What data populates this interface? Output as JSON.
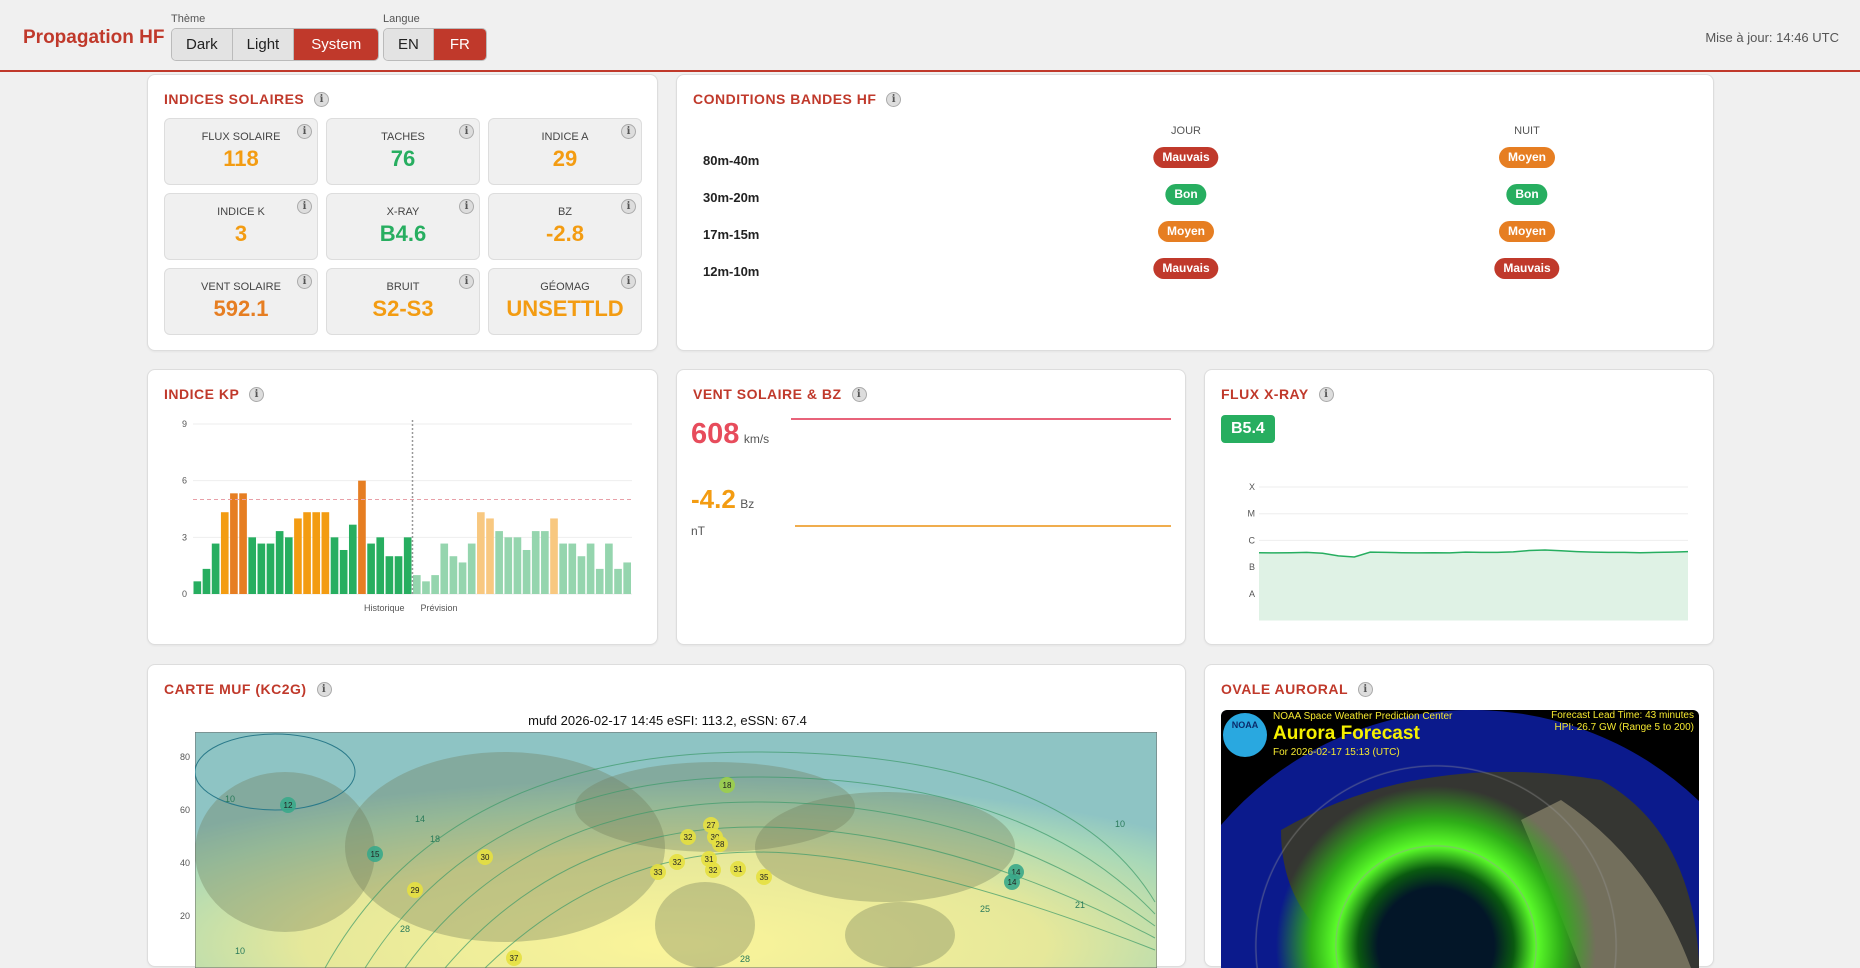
{
  "header": {
    "title": "Propagation HF",
    "theme_label": "Thème",
    "theme_options": [
      "Dark",
      "Light",
      "System"
    ],
    "theme_selected": "System",
    "lang_label": "Langue",
    "lang_options": [
      "EN",
      "FR"
    ],
    "lang_selected": "FR",
    "updated": "Mise à jour: 14:46 UTC"
  },
  "colors": {
    "accent": "#c0392b",
    "good": "#27ae60",
    "fair": "#e67e22",
    "poor": "#c0392b",
    "warn": "#f39c12"
  },
  "solar": {
    "title": "INDICES SOLAIRES",
    "tiles": [
      {
        "label": "FLUX SOLAIRE",
        "value": "118",
        "color": "#f39c12"
      },
      {
        "label": "TACHES",
        "value": "76",
        "color": "#27ae60"
      },
      {
        "label": "INDICE A",
        "value": "29",
        "color": "#f39c12"
      },
      {
        "label": "INDICE K",
        "value": "3",
        "color": "#f39c12"
      },
      {
        "label": "X-RAY",
        "value": "B4.6",
        "color": "#27ae60"
      },
      {
        "label": "BZ",
        "value": "-2.8",
        "color": "#f39c12"
      },
      {
        "label": "VENT SOLAIRE",
        "value": "592.1",
        "color": "#e67e22"
      },
      {
        "label": "BRUIT",
        "value": "S2-S3",
        "color": "#f39c12"
      },
      {
        "label": "GÉOMAG",
        "value": "UNSETTLD",
        "color": "#f39c12"
      }
    ]
  },
  "bands": {
    "title": "CONDITIONS BANDES HF",
    "col_day": "JOUR",
    "col_night": "NUIT",
    "rows": [
      {
        "band": "80m-40m",
        "day": "Mauvais",
        "day_color": "#c0392b",
        "night": "Moyen",
        "night_color": "#e67e22"
      },
      {
        "band": "30m-20m",
        "day": "Bon",
        "day_color": "#27ae60",
        "night": "Bon",
        "night_color": "#27ae60"
      },
      {
        "band": "17m-15m",
        "day": "Moyen",
        "day_color": "#e67e22",
        "night": "Moyen",
        "night_color": "#e67e22"
      },
      {
        "band": "12m-10m",
        "day": "Mauvais",
        "day_color": "#c0392b",
        "night": "Mauvais",
        "night_color": "#c0392b"
      }
    ]
  },
  "chart_data": [
    {
      "type": "bar",
      "title": "INDICE KP",
      "yticks": [
        "0",
        "3",
        "6",
        "9"
      ],
      "ylim": [
        0,
        9
      ],
      "threshold": 5,
      "grid": true,
      "xlabels": [
        "Historique",
        "Prévision"
      ],
      "series": [
        {
          "name": "Historique",
          "values": [
            0.67,
            1.33,
            2.67,
            4.33,
            5.33,
            5.33,
            3,
            2.67,
            2.67,
            3.33,
            3,
            4,
            4.33,
            4.33,
            4.33,
            3,
            2.33,
            3.67,
            6,
            2.67,
            3,
            2,
            2,
            3
          ]
        },
        {
          "name": "Prévision",
          "values": [
            1,
            0.67,
            1,
            2.67,
            2,
            1.67,
            2.67,
            4.33,
            4,
            3.33,
            3,
            3,
            2.33,
            3.33,
            3.33,
            4,
            2.67,
            2.67,
            2,
            2.67,
            1.33,
            2.67,
            1.33,
            1.67
          ]
        }
      ]
    },
    {
      "type": "line",
      "title": "FLUX X-RAY",
      "yticks": [
        "X",
        "M",
        "C",
        "B",
        "A"
      ],
      "grid": true,
      "current": "B5.4",
      "values": [
        5.4,
        5.3,
        5.4,
        5.5,
        5.2,
        4.2,
        3.8,
        5.6,
        5.5,
        5.4,
        5.3,
        5.4,
        5.3,
        5.6,
        5.5,
        5.5,
        5.7,
        6.2,
        6.4,
        6.1,
        5.8,
        5.6,
        5.5,
        5.5,
        5.4,
        5.5,
        5.6,
        5.8
      ]
    }
  ],
  "wind": {
    "title": "VENT SOLAIRE & BZ",
    "speed": "608",
    "speed_unit": "km/s",
    "bz": "-4.2",
    "bz_unit": "Bz nT"
  },
  "muf": {
    "title": "CARTE MUF (KC2G)",
    "map_title": "mufd 2026-02-17 14:45 eSFI: 113.2, eSSN: 67.4",
    "lat_ticks": [
      "80",
      "60",
      "40",
      "20"
    ],
    "stations": [
      "12",
      "18",
      "15",
      "30",
      "29",
      "27",
      "32",
      "30",
      "28",
      "32",
      "31",
      "33",
      "32",
      "31",
      "35",
      "14",
      "14",
      "37"
    ],
    "contours": [
      "10",
      "14",
      "18",
      "28",
      "25",
      "21",
      "10",
      "10",
      "28"
    ]
  },
  "aurora": {
    "title": "OVALE AURORAL",
    "org": "NOAA Space Weather Prediction Center",
    "heading": "Aurora Forecast",
    "for": "For 2026-02-17 15:13 (UTC)",
    "lead": "Forecast Lead Time:  43 minutes",
    "hpi": "HPI:  26.7 GW (Range 5 to 200)",
    "logo": "NOAA"
  }
}
